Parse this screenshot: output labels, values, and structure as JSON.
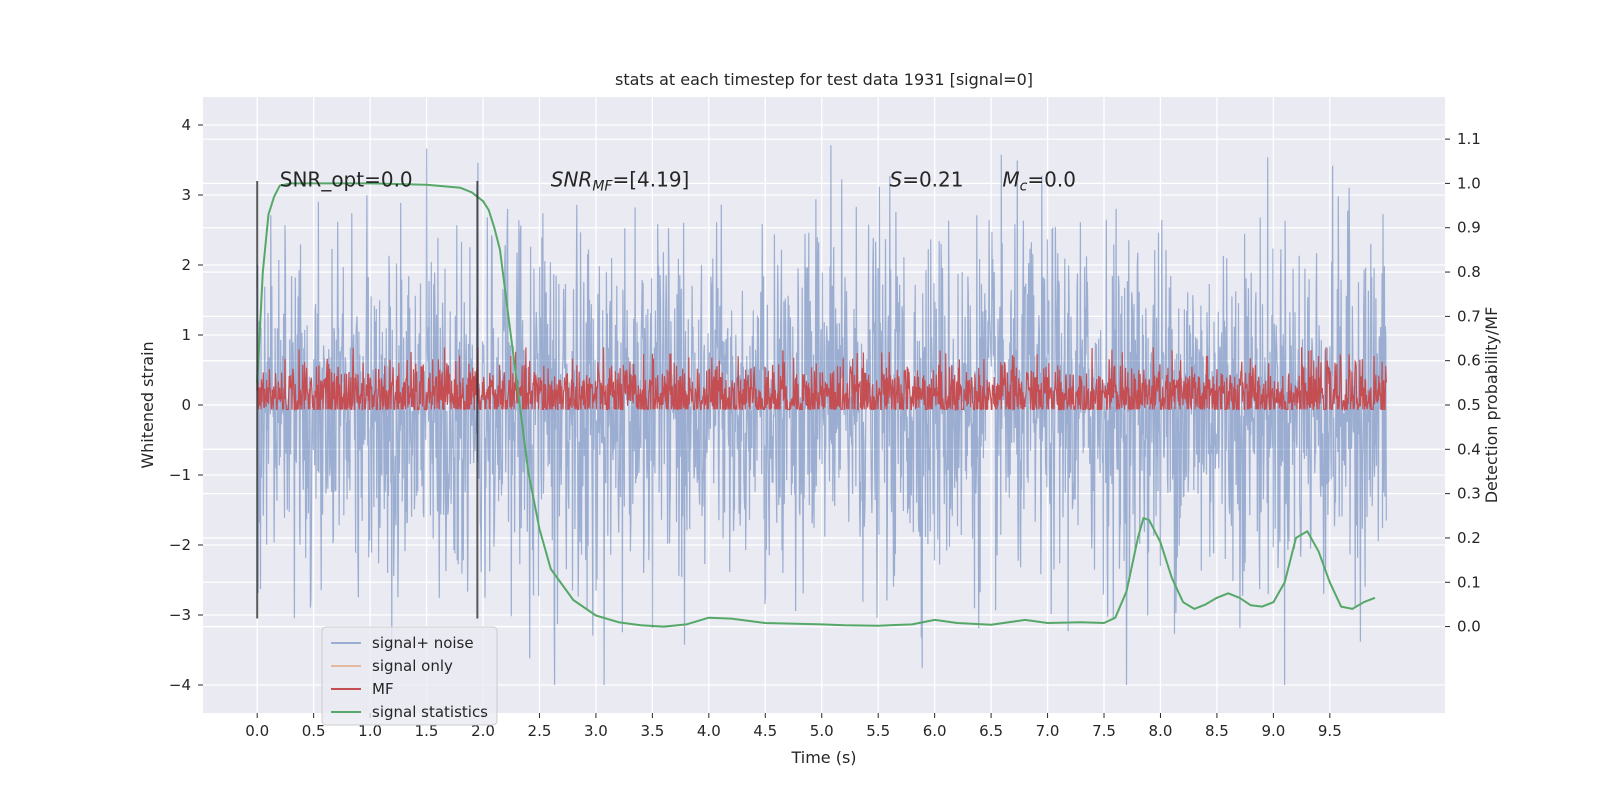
{
  "chart_data": {
    "type": "line",
    "title": "stats at each timestep for test data 1931 [signal=0]",
    "xlabel": "Time (s)",
    "ylabel": "Whitened strain",
    "y2label": "Detection probability/MF",
    "xlim": [
      -0.48,
      10.52
    ],
    "ylim": [
      -4.4,
      4.4
    ],
    "y2lim": [
      -0.195,
      1.195
    ],
    "x_ticks": [
      0.0,
      0.5,
      1.0,
      1.5,
      2.0,
      2.5,
      3.0,
      3.5,
      4.0,
      4.5,
      5.0,
      5.5,
      6.0,
      6.5,
      7.0,
      7.5,
      8.0,
      8.5,
      9.0,
      9.5
    ],
    "x_tick_labels": [
      "0.0",
      "0.5",
      "1.0",
      "1.5",
      "2.0",
      "2.5",
      "3.0",
      "3.5",
      "4.0",
      "4.5",
      "5.0",
      "5.5",
      "6.0",
      "6.5",
      "7.0",
      "7.5",
      "8.0",
      "8.5",
      "9.0",
      "9.5"
    ],
    "y_ticks": [
      -4,
      -3,
      -2,
      -1,
      0,
      1,
      2,
      3,
      4
    ],
    "y_tick_labels": [
      "−4",
      "−3",
      "−2",
      "−1",
      "0",
      "1",
      "2",
      "3",
      "4"
    ],
    "y2_ticks": [
      0.0,
      0.1,
      0.2,
      0.3,
      0.4,
      0.5,
      0.6,
      0.7,
      0.8,
      0.9,
      1.0,
      1.1
    ],
    "y2_tick_labels": [
      "0.0",
      "0.1",
      "0.2",
      "0.3",
      "0.4",
      "0.5",
      "0.6",
      "0.7",
      "0.8",
      "0.9",
      "1.0",
      "1.1"
    ],
    "grid": true,
    "legend_position": "lower-left",
    "series": [
      {
        "name": "signal+ noise",
        "axis": "left",
        "color": "#4c72b0",
        "opacity": 0.5,
        "x_range": [
          0.0,
          10.0
        ],
        "n_samples": 2400,
        "noise_sd": 1.0,
        "extent_y": [
          -4.0,
          4.1
        ]
      },
      {
        "name": "signal only",
        "axis": "left",
        "color": "#dd8452",
        "opacity": 0.5,
        "values": []
      },
      {
        "name": "MF",
        "axis": "right",
        "color": "#c44e52",
        "x_range": [
          0.0,
          10.0
        ],
        "center": 0.52,
        "spread": 0.04,
        "extent_y": [
          0.49,
          0.63
        ]
      },
      {
        "name": "signal statistics",
        "axis": "right",
        "color": "#55a868",
        "x": [
          0.0,
          0.05,
          0.1,
          0.15,
          0.2,
          0.3,
          0.5,
          1.0,
          1.5,
          1.8,
          1.9,
          2.0,
          2.05,
          2.1,
          2.15,
          2.2,
          2.3,
          2.4,
          2.5,
          2.6,
          2.8,
          3.0,
          3.2,
          3.4,
          3.6,
          3.8,
          4.0,
          4.2,
          4.5,
          5.0,
          5.2,
          5.5,
          5.8,
          6.0,
          6.2,
          6.5,
          6.8,
          7.0,
          7.3,
          7.5,
          7.6,
          7.7,
          7.8,
          7.85,
          7.9,
          8.0,
          8.1,
          8.2,
          8.3,
          8.4,
          8.5,
          8.6,
          8.7,
          8.8,
          8.9,
          9.0,
          9.1,
          9.2,
          9.3,
          9.4,
          9.5,
          9.6,
          9.7,
          9.8,
          9.9
        ],
        "y": [
          0.55,
          0.8,
          0.93,
          0.97,
          0.995,
          1.0,
          1.0,
          1.0,
          0.997,
          0.99,
          0.98,
          0.96,
          0.94,
          0.9,
          0.85,
          0.75,
          0.55,
          0.35,
          0.22,
          0.13,
          0.06,
          0.025,
          0.01,
          0.003,
          0.0,
          0.005,
          0.02,
          0.018,
          0.008,
          0.005,
          0.003,
          0.002,
          0.005,
          0.015,
          0.008,
          0.004,
          0.015,
          0.008,
          0.01,
          0.008,
          0.02,
          0.08,
          0.2,
          0.245,
          0.24,
          0.19,
          0.11,
          0.055,
          0.04,
          0.05,
          0.065,
          0.075,
          0.065,
          0.048,
          0.045,
          0.055,
          0.1,
          0.2,
          0.215,
          0.17,
          0.1,
          0.045,
          0.04,
          0.055,
          0.065
        ]
      },
      {
        "name": "",
        "axis": "left",
        "color": "#262626",
        "opacity": 0.75,
        "vlines_x": [
          0.0,
          1.95
        ],
        "vline_ylim": [
          -3.05,
          3.2
        ]
      }
    ],
    "annotations": [
      {
        "text": "SNR_opt=0.0",
        "x": 0.2,
        "y": 3.12
      },
      {
        "text_prefix": "SNR",
        "sub": "MF",
        "text_suffix": "=[4.19]",
        "italic": true,
        "x": 2.6,
        "y": 3.12
      },
      {
        "text_prefix": "S",
        "text_suffix": "=0.21",
        "italic": true,
        "x": 5.6,
        "y": 3.12
      },
      {
        "text_prefix": "M",
        "sub": "c",
        "text_suffix": "=0.0",
        "italic": true,
        "x": 6.6,
        "y": 3.12
      }
    ]
  },
  "legend": {
    "items": [
      {
        "label": "signal+ noise",
        "color": "#4c72b0",
        "opacity": 0.5
      },
      {
        "label": "signal only",
        "color": "#dd8452",
        "opacity": 0.5
      },
      {
        "label": "MF",
        "color": "#c44e52",
        "opacity": 1
      },
      {
        "label": "signal statistics",
        "color": "#55a868",
        "opacity": 1
      }
    ]
  },
  "colors": {
    "plot_background": "#eaeaf2",
    "grid": "#ffffff",
    "text": "#262626"
  }
}
